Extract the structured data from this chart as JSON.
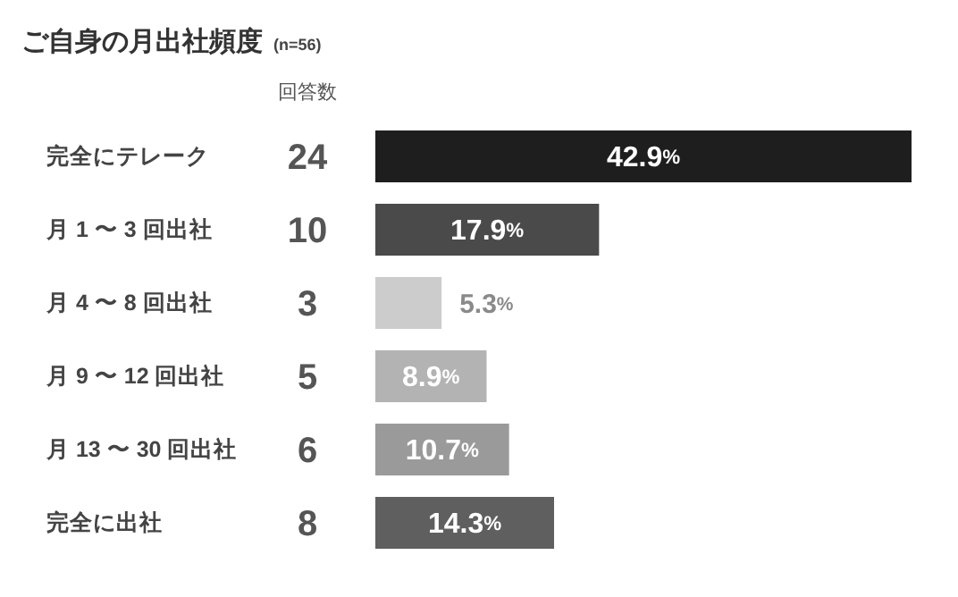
{
  "chart_data": {
    "type": "bar",
    "orientation": "horizontal",
    "title": "ご自身の月出社頻度",
    "subtitle": "(n=56)",
    "categories": [
      "完全にテレーク",
      "月 1 〜 3 回出社",
      "月 4 〜 8 回出社",
      "月 9 〜 12 回出社",
      "月 13 〜 30 回出社",
      "完全に出社"
    ],
    "values": [
      42.9,
      17.9,
      5.3,
      8.9,
      10.7,
      14.3
    ],
    "colors": [
      "#1e1e1e",
      "#4a4a4a",
      "#cccccc",
      "#b3b3b3",
      "#9a9a9a",
      "#5f5f5f"
    ],
    "value_labels": [
      "42.9%",
      "17.9%",
      "5.3%",
      "8.9%",
      "10.7%",
      "14.3%"
    ],
    "annotations": [
      "回答数",
      "24",
      "10",
      "3",
      "5",
      "6",
      "8"
    ],
    "grid": false,
    "tick_labels": "y"
  }
}
